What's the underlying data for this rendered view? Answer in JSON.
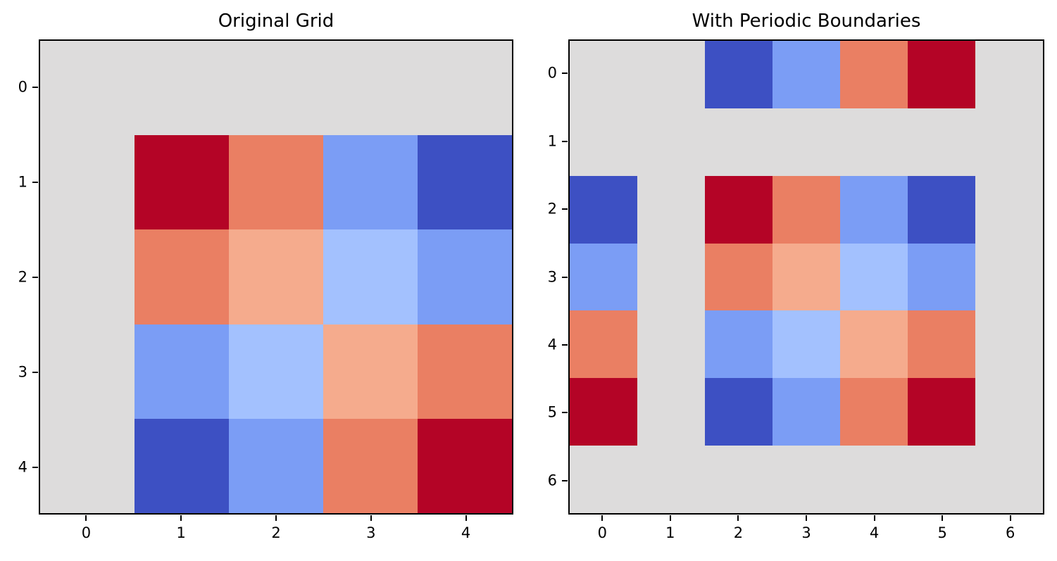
{
  "figure": {
    "background_color": "#ffffff",
    "text_color": "#000000",
    "spine_color": "#000000"
  },
  "chart_data": [
    {
      "type": "heatmap",
      "title": "Original Grid",
      "colormap": "coolwarm",
      "grid": false,
      "rows": 5,
      "cols": 5,
      "x_tick_labels": [
        "0",
        "1",
        "2",
        "3",
        "4"
      ],
      "y_tick_labels": [
        "0",
        "1",
        "2",
        "3",
        "4"
      ],
      "empty_color": "#dddcdc",
      "value_colors": {
        "0": "#3d50c3",
        "0.2": "#7b9df5",
        "0.32": "#a3c1fe",
        "0.68": "#f5ab8d",
        "0.8": "#ea7f63",
        "1": "#b40426"
      },
      "values": [
        [
          null,
          null,
          null,
          null,
          null
        ],
        [
          null,
          1,
          0.8,
          0.2,
          0
        ],
        [
          null,
          0.8,
          0.68,
          0.32,
          0.2
        ],
        [
          null,
          0.2,
          0.32,
          0.68,
          0.8
        ],
        [
          null,
          0,
          0.2,
          0.8,
          1
        ]
      ]
    },
    {
      "type": "heatmap",
      "title": "With Periodic Boundaries",
      "colormap": "coolwarm",
      "grid": false,
      "rows": 7,
      "cols": 7,
      "x_tick_labels": [
        "0",
        "1",
        "2",
        "3",
        "4",
        "5",
        "6"
      ],
      "y_tick_labels": [
        "0",
        "1",
        "2",
        "3",
        "4",
        "5",
        "6"
      ],
      "empty_color": "#dddcdc",
      "value_colors": {
        "0": "#3d50c3",
        "0.2": "#7b9df5",
        "0.32": "#a3c1fe",
        "0.68": "#f5ab8d",
        "0.8": "#ea7f63",
        "1": "#b40426"
      },
      "values": [
        [
          null,
          null,
          0,
          0.2,
          0.8,
          1,
          null
        ],
        [
          null,
          null,
          null,
          null,
          null,
          null,
          null
        ],
        [
          0,
          null,
          1,
          0.8,
          0.2,
          0,
          null
        ],
        [
          0.2,
          null,
          0.8,
          0.68,
          0.32,
          0.2,
          null
        ],
        [
          0.8,
          null,
          0.2,
          0.32,
          0.68,
          0.8,
          null
        ],
        [
          1,
          null,
          0,
          0.2,
          0.8,
          1,
          null
        ],
        [
          null,
          null,
          null,
          null,
          null,
          null,
          null
        ]
      ]
    }
  ]
}
